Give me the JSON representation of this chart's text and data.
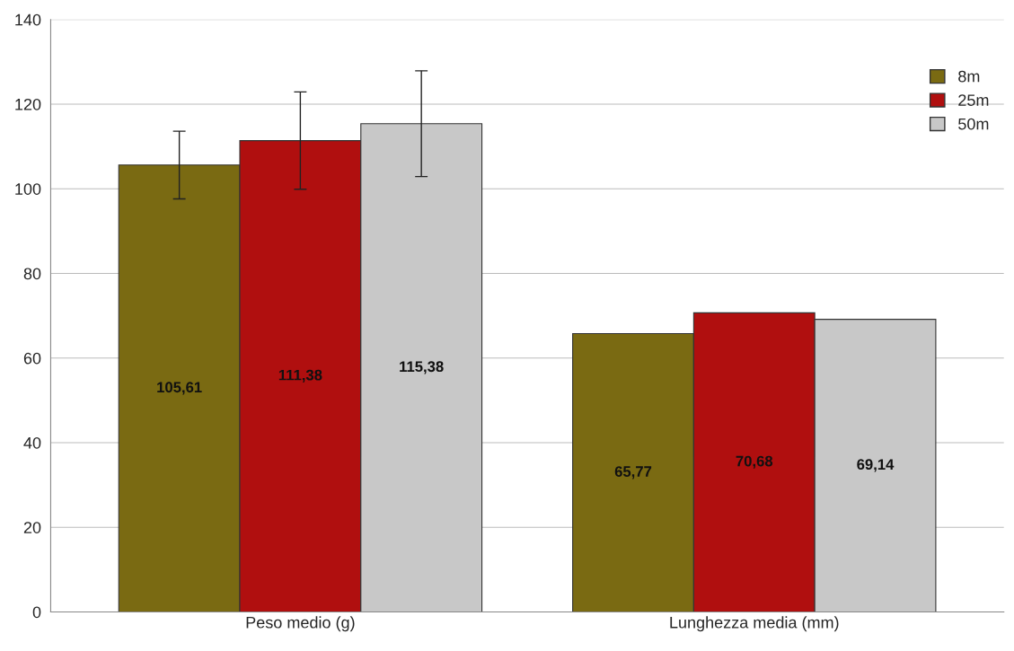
{
  "chart_data": {
    "type": "bar",
    "categories": [
      "Peso medio (g)",
      "Lunghezza media (mm)"
    ],
    "series": [
      {
        "name": "8m",
        "color": "#7a6a12",
        "values": [
          105.61,
          65.77
        ],
        "value_labels": [
          "105,61",
          "65,77"
        ],
        "errors": [
          8,
          null
        ]
      },
      {
        "name": "25m",
        "color": "#b00f0f",
        "values": [
          111.38,
          70.68
        ],
        "value_labels": [
          "111,38",
          "70,68"
        ],
        "errors": [
          11.5,
          null
        ]
      },
      {
        "name": "50m",
        "color": "#c8c8c8",
        "values": [
          115.38,
          69.14
        ],
        "value_labels": [
          "115,38",
          "69,14"
        ],
        "errors": [
          12.5,
          null
        ]
      }
    ],
    "ylim": [
      0,
      140
    ],
    "yticks": [
      0,
      20,
      40,
      60,
      80,
      100,
      120,
      140
    ],
    "grid": "y",
    "legend": "top right"
  }
}
